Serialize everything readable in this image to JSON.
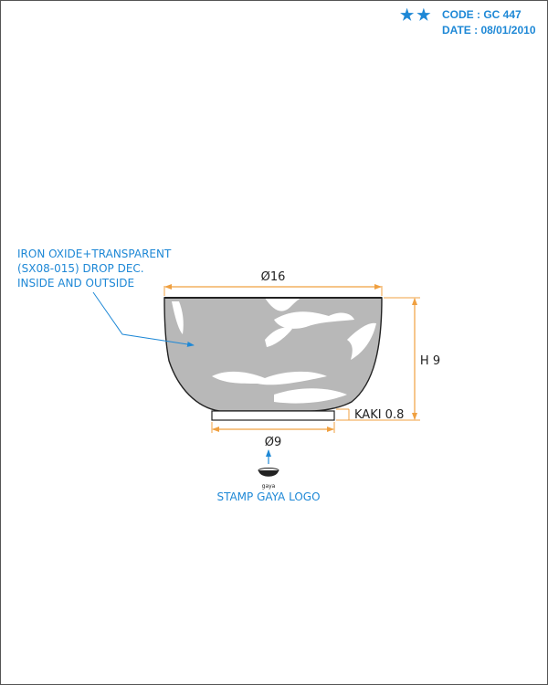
{
  "header": {
    "code_label": "CODE : GC 447",
    "date_label": "DATE : 08/01/2010",
    "star_icon": "star-icon"
  },
  "annotation": {
    "line1": "IRON OXIDE+TRANSPARENT",
    "line2": "(SX08-015) DROP DEC.",
    "line3": "INSIDE AND OUTSIDE"
  },
  "dimensions": {
    "top_diameter": "Ø16",
    "height": "H 9",
    "foot_height": "KAKI 0.8",
    "foot_diameter": "Ø9"
  },
  "stamp": {
    "logo_text": "gaya",
    "label": "STAMP GAYA LOGO"
  },
  "colors": {
    "accent": "#1e88d6",
    "dimension_line": "#f0a040",
    "glaze": "#b8b8b8",
    "outline": "#222222"
  }
}
